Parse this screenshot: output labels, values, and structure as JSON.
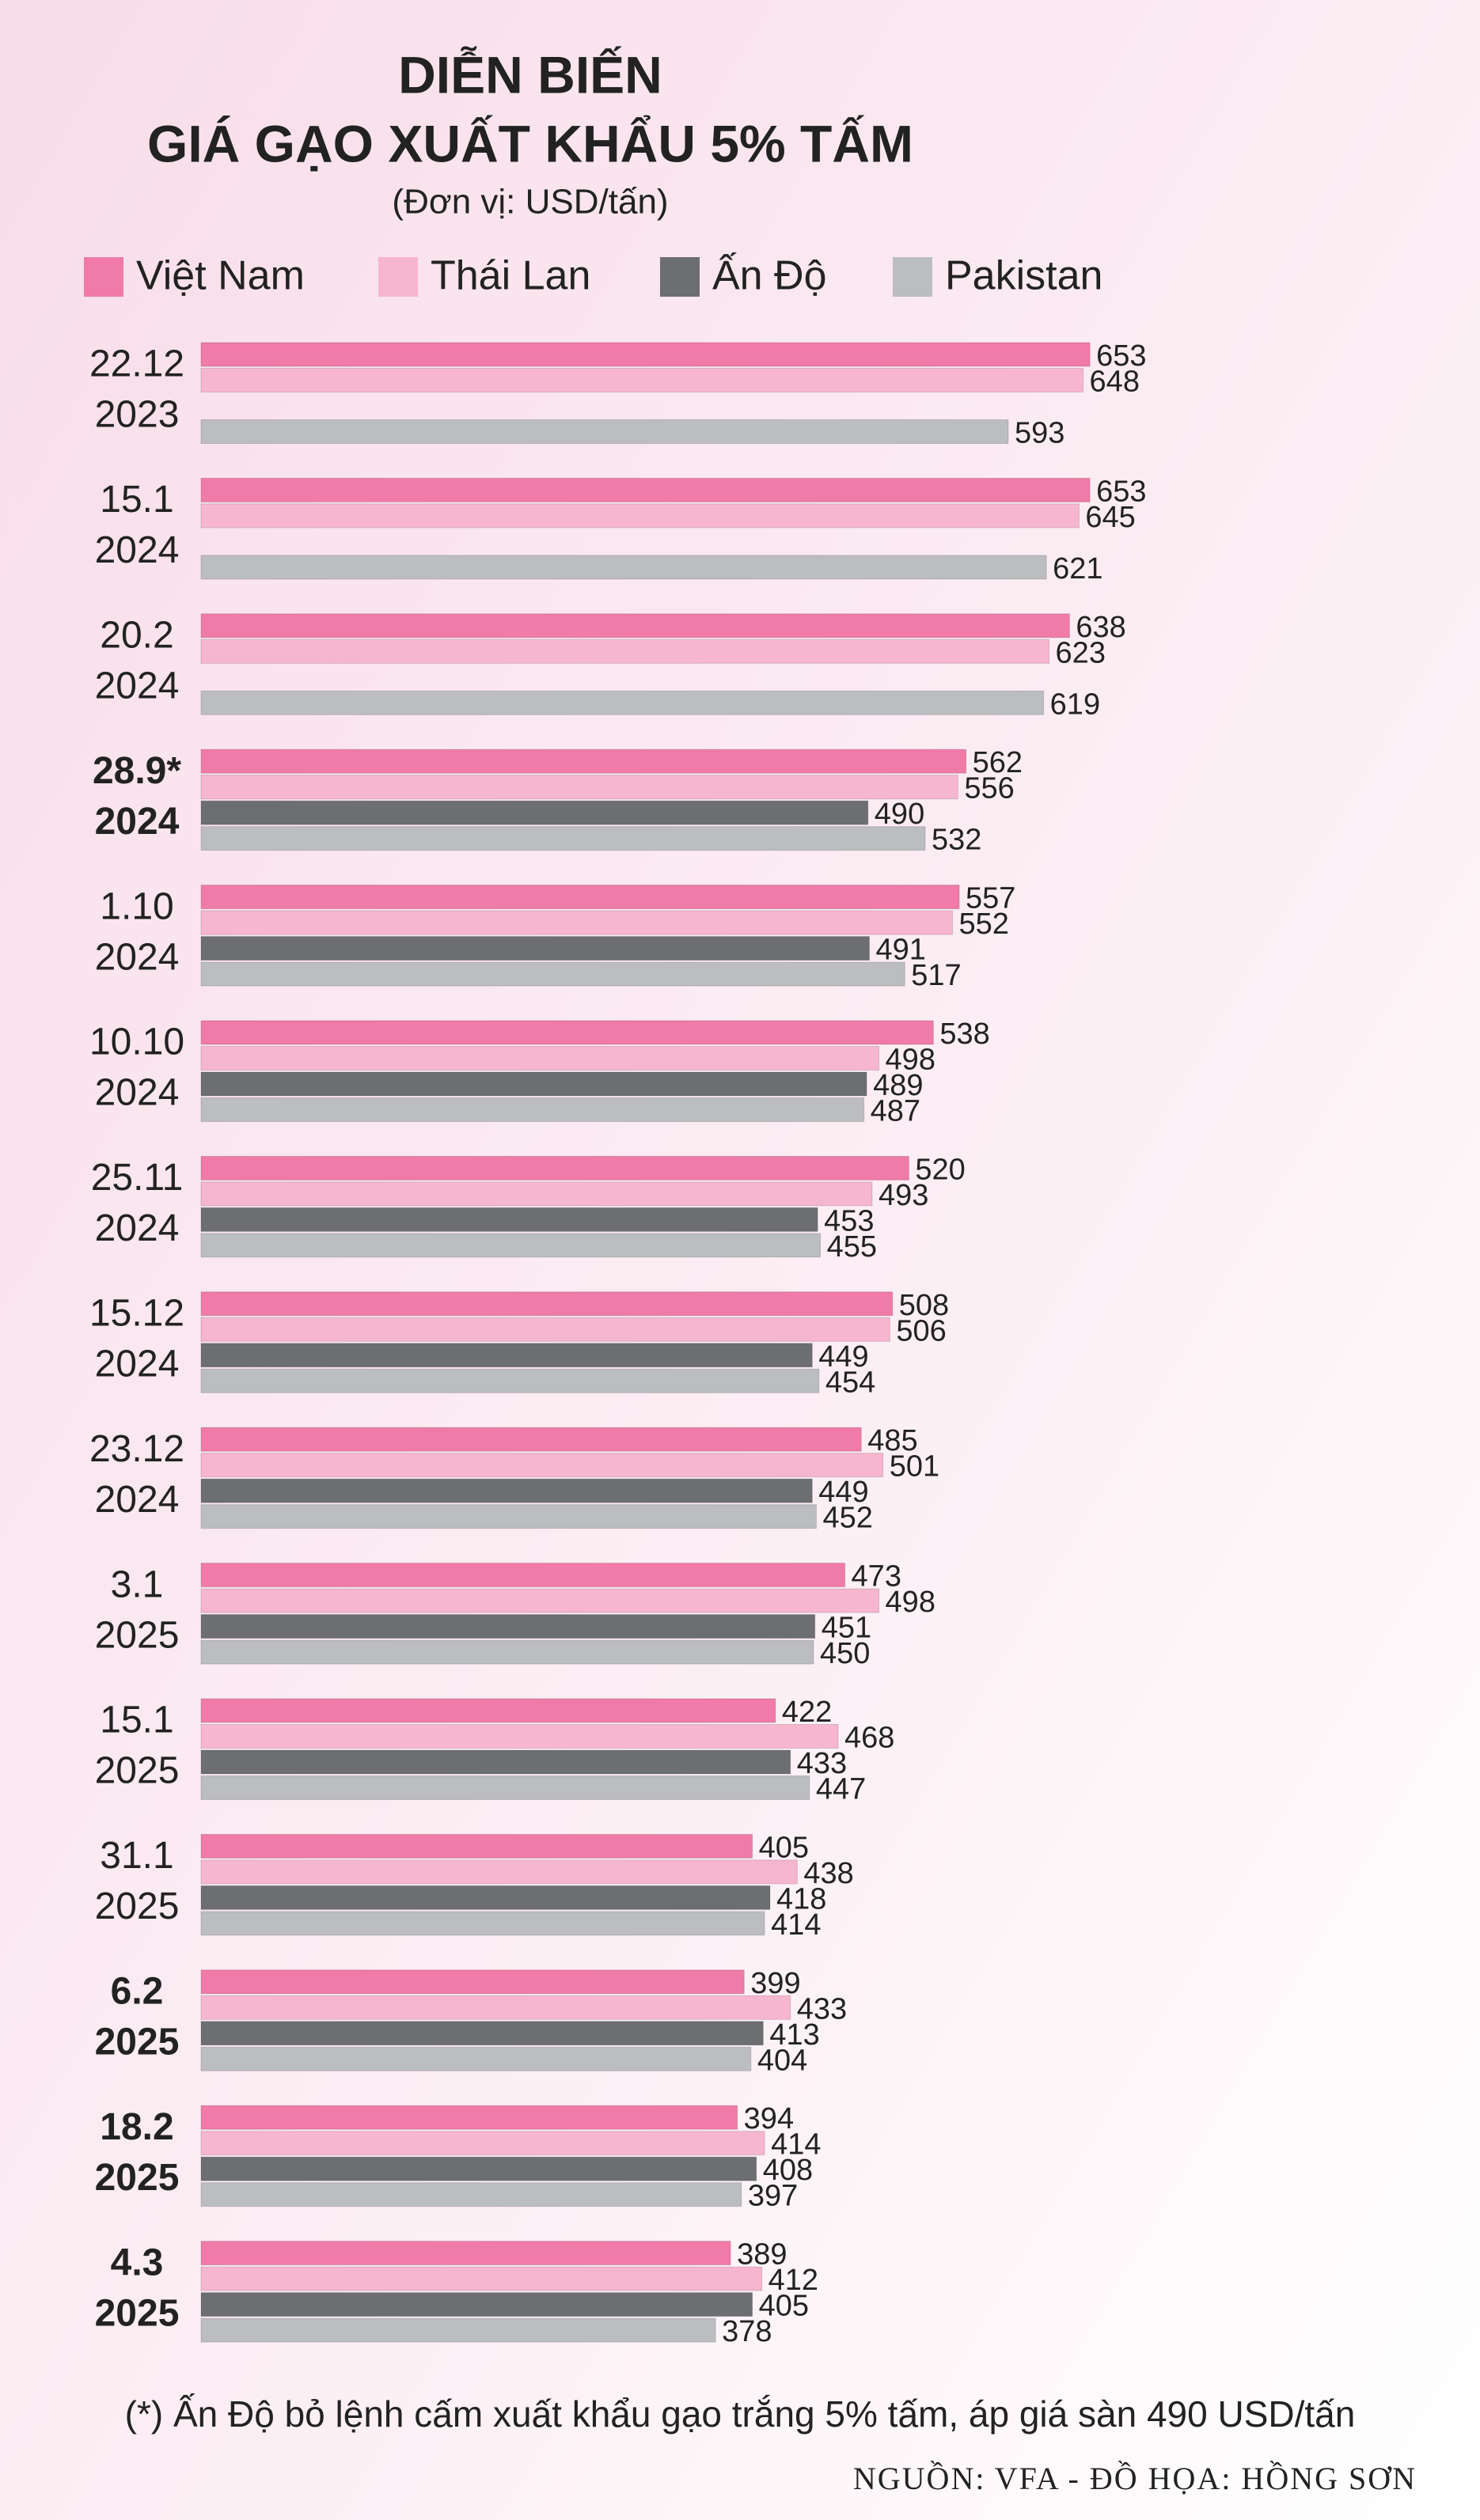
{
  "chart_data": {
    "type": "hbar",
    "title": [
      "DIỄN BIẾN",
      "GIÁ GẠO XUẤT KHẨU 5% TẤM"
    ],
    "subtitle": "(Đơn vị: USD/tấn)",
    "categories": [
      [
        "22.12",
        "2023"
      ],
      [
        "15.1",
        "2024"
      ],
      [
        "20.2",
        "2024"
      ],
      [
        "28.9*",
        "2024"
      ],
      [
        "1.10",
        "2024"
      ],
      [
        "10.10",
        "2024"
      ],
      [
        "25.11",
        "2024"
      ],
      [
        "15.12",
        "2024"
      ],
      [
        "23.12",
        "2024"
      ],
      [
        "3.1",
        "2025"
      ],
      [
        "15.1",
        "2025"
      ],
      [
        "31.1",
        "2025"
      ],
      [
        "6.2",
        "2025"
      ],
      [
        "18.2",
        "2025"
      ],
      [
        "4.3",
        "2025"
      ]
    ],
    "bold": [
      false,
      false,
      false,
      true,
      false,
      false,
      false,
      false,
      false,
      false,
      false,
      false,
      true,
      true,
      true
    ],
    "series": [
      {
        "name": "Việt Nam",
        "color": "#f07aa8",
        "values": [
          653,
          653,
          638,
          562,
          557,
          538,
          520,
          508,
          485,
          473,
          422,
          405,
          399,
          394,
          389
        ]
      },
      {
        "name": "Thái Lan",
        "color": "#f7b6cf",
        "values": [
          648,
          645,
          623,
          556,
          552,
          498,
          493,
          506,
          501,
          498,
          468,
          438,
          433,
          414,
          412
        ]
      },
      {
        "name": "Ấn Độ",
        "color": "#6d6e71",
        "values": [
          null,
          null,
          null,
          490,
          491,
          489,
          453,
          449,
          449,
          451,
          433,
          418,
          413,
          408,
          405
        ]
      },
      {
        "name": "Pakistan",
        "color": "#bcbdc0",
        "values": [
          593,
          621,
          619,
          532,
          517,
          487,
          455,
          454,
          452,
          450,
          447,
          414,
          404,
          397,
          378
        ]
      }
    ],
    "footnote": "(*) Ấn Độ bỏ lệnh cấm xuất khẩu gạo trắng 5% tấm, áp giá sàn 490 USD/tấn",
    "source": "NGUỒN: VFA - ĐỒ HỌA: HỒNG SƠN"
  }
}
